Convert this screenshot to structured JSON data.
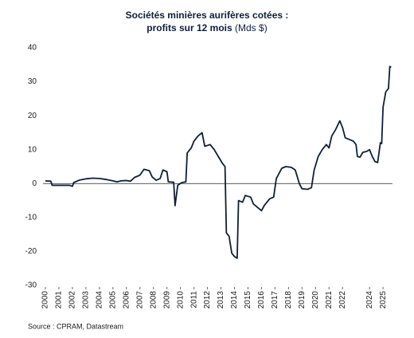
{
  "chart_data": {
    "type": "line",
    "title": [
      "Sociétés minières aurifères cotées :",
      "profits sur 12 mois"
    ],
    "title_unit": "(Mds $)",
    "source": "Source : CPRAM, Datastream",
    "color": "#0d1f3c",
    "x": [
      2000,
      2000.4,
      2000.5,
      2001.8,
      2002,
      2002.1,
      2002.5,
      2003,
      2003.5,
      2004,
      2004.5,
      2005,
      2005.3,
      2005.6,
      2006,
      2006.3,
      2006.6,
      2007,
      2007.3,
      2007.7,
      2007.9,
      2008.2,
      2008.5,
      2008.7,
      2009,
      2009.1,
      2009.5,
      2009.6,
      2009.8,
      2010.1,
      2010.4,
      2010.5,
      2010.8,
      2011,
      2011.3,
      2011.6,
      2011.8,
      2012.2,
      2012.5,
      2012.8,
      2013.1,
      2013.3,
      2013.4,
      2013.6,
      2013.8,
      2014,
      2014.2,
      2014.3,
      2014.6,
      2014.8,
      2015.2,
      2015.4,
      2015.7,
      2016,
      2016.2,
      2016.6,
      2016.9,
      2017.1,
      2017.5,
      2017.8,
      2018.2,
      2018.5,
      2018.8,
      2019,
      2019.4,
      2019.7,
      2019.9,
      2020.2,
      2020.5,
      2020.8,
      2021,
      2021.2,
      2021.5,
      2021.8,
      2022,
      2022.2,
      2022.5,
      2022.8,
      2023,
      2023.1,
      2023.3,
      2023.5,
      2023.8,
      2024,
      2024.2,
      2024.4,
      2024.6,
      2024.8,
      2024.9,
      2025,
      2025.2,
      2025.4,
      2025.5,
      2025.6
    ],
    "values": [
      0.8,
      0.7,
      -0.5,
      -0.5,
      -0.8,
      0.3,
      1.0,
      1.4,
      1.6,
      1.5,
      1.2,
      0.8,
      0.5,
      0.8,
      0.9,
      0.7,
      1.8,
      2.5,
      4.2,
      3.8,
      2.0,
      1.0,
      1.5,
      4.0,
      3.5,
      0.5,
      0.4,
      -6.5,
      -0.5,
      0.3,
      0.5,
      9,
      10.5,
      12.5,
      14,
      15,
      11,
      11.5,
      10,
      8,
      6,
      5,
      -14.5,
      -15.5,
      -20.5,
      -21.5,
      -22,
      -5,
      -5.5,
      -3.5,
      -4,
      -6,
      -7,
      -8,
      -6.5,
      -4.5,
      -4,
      1.5,
      4.5,
      5,
      4.8,
      4,
      0,
      -1.5,
      -1.7,
      -1.2,
      4,
      8,
      10,
      11.5,
      10.5,
      14,
      16,
      18.5,
      16.5,
      13.5,
      13,
      12.5,
      11.5,
      8,
      7.8,
      9.2,
      9.5,
      10,
      8,
      6.5,
      6.2,
      12,
      11.8,
      22.5,
      27,
      28,
      34.5,
      34.3
    ],
    "xlim": [
      2000,
      2025.7
    ],
    "xticks": [
      2000,
      2001,
      2002,
      2003,
      2004,
      2005,
      2006,
      2007,
      2008,
      2009,
      2010,
      2011,
      2012,
      2013,
      2014,
      2015,
      2016,
      2017,
      2018,
      2019,
      2020,
      2021,
      2022,
      2024,
      2025
    ],
    "ylim": [
      -30,
      40
    ],
    "yticks": [
      -30,
      -20,
      -10,
      0,
      10,
      20,
      30,
      40
    ],
    "zero_line": true
  }
}
